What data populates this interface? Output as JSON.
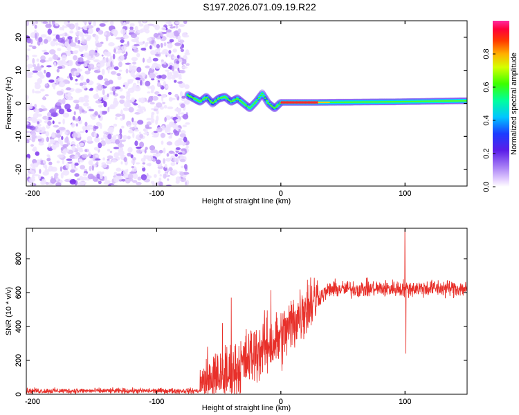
{
  "title": "S197.2026.071.09.19.R22",
  "chart_data": [
    {
      "type": "heatmap",
      "xlabel": "Height of straight line (km)",
      "ylabel": "Frequency (Hz)",
      "xlim": [
        -205,
        150
      ],
      "ylim": [
        -25,
        25
      ],
      "xticks": [
        -200,
        -100,
        0,
        100
      ],
      "xtick_labels": [
        "-200",
        "-100",
        "0",
        "100"
      ],
      "yticks": [
        -20,
        -10,
        0,
        10,
        20
      ],
      "ytick_labels": [
        "-20",
        "-10",
        "0",
        "10",
        "20"
      ],
      "noise_region_x": [
        -205,
        -75
      ],
      "track": [
        {
          "x": -75,
          "y": 2.5
        },
        {
          "x": -70,
          "y": 1.5
        },
        {
          "x": -65,
          "y": 0.5
        },
        {
          "x": -60,
          "y": 2.0
        },
        {
          "x": -55,
          "y": 0.0
        },
        {
          "x": -50,
          "y": 1.5
        },
        {
          "x": -45,
          "y": 2.0
        },
        {
          "x": -40,
          "y": 0.5
        },
        {
          "x": -35,
          "y": 1.5
        },
        {
          "x": -30,
          "y": 0.0
        },
        {
          "x": -25,
          "y": -1.5
        },
        {
          "x": -20,
          "y": 0.5
        },
        {
          "x": -15,
          "y": 3.0
        },
        {
          "x": -10,
          "y": 0.0
        },
        {
          "x": -5,
          "y": -1.5
        },
        {
          "x": 0,
          "y": 0.3
        },
        {
          "x": 30,
          "y": 0.3
        },
        {
          "x": 95,
          "y": 0.5
        },
        {
          "x": 150,
          "y": 0.8
        }
      ],
      "colorbar": {
        "label": "Normalized spectral amplitude",
        "ticks": [
          0.0,
          0.2,
          0.4,
          0.6,
          0.8
        ],
        "tick_labels": [
          "0.0",
          "0.2",
          "0.4",
          "0.6",
          "0.8"
        ],
        "range": [
          0,
          1
        ]
      }
    },
    {
      "type": "line",
      "series": [
        {
          "name": "SNR",
          "color": "#e8302a"
        }
      ],
      "xlabel": "Height of straight line (km)",
      "ylabel": "SNR (10 * v/v)",
      "xlim": [
        -205,
        150
      ],
      "ylim": [
        0,
        980
      ],
      "xticks": [
        -200,
        -100,
        0,
        100
      ],
      "xtick_labels": [
        "-200",
        "-100",
        "0",
        "100"
      ],
      "yticks": [
        0,
        200,
        400,
        600,
        800
      ],
      "ytick_labels": [
        "0",
        "200",
        "400",
        "600",
        "800"
      ],
      "trend": [
        {
          "x": -205,
          "y": 20
        },
        {
          "x": -65,
          "y": 20
        },
        {
          "x": -60,
          "y": 60
        },
        {
          "x": -40,
          "y": 120
        },
        {
          "x": -20,
          "y": 250
        },
        {
          "x": 0,
          "y": 330
        },
        {
          "x": 20,
          "y": 520
        },
        {
          "x": 40,
          "y": 620
        },
        {
          "x": 100,
          "y": 625
        },
        {
          "x": 150,
          "y": 625
        }
      ],
      "spikes": [
        {
          "x": -59,
          "y": 280
        },
        {
          "x": -47,
          "y": 420
        },
        {
          "x": -40,
          "y": 570
        },
        {
          "x": -8,
          "y": 615
        },
        {
          "x": 100,
          "y": 970
        },
        {
          "x": 100.6,
          "y": 240
        }
      ]
    }
  ]
}
